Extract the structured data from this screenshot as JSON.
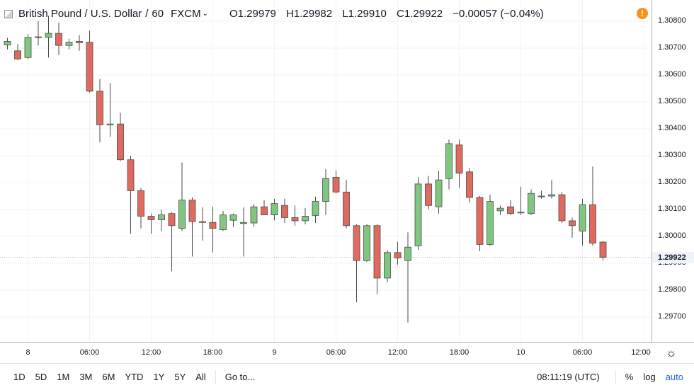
{
  "legend": {
    "symbol": "British Pound / U.S. Dollar",
    "interval": "60",
    "source": "FXCM",
    "open": "O1.29979",
    "high": "H1.29982",
    "low": "L1.29910",
    "close": "C1.29922",
    "change": "−0.00057 (−0.04%)"
  },
  "current_price": "1.29922",
  "toolbar": {
    "ranges": [
      "1D",
      "5D",
      "1M",
      "3M",
      "6M",
      "YTD",
      "1Y",
      "5Y",
      "All"
    ],
    "goto": "Go to...",
    "clock": "08:11:19 (UTC)",
    "percent": "%",
    "log": "log",
    "auto": "auto"
  },
  "colors": {
    "up": "#7fc67f",
    "down": "#e06a5e",
    "wick": "#4a4a4a",
    "grid": "#f0f3fa",
    "accent": "#2962ff"
  },
  "chart_data": {
    "type": "candlestick",
    "ylim": [
      1.29655,
      1.30845
    ],
    "y_ticks": [
      "1.30800",
      "1.30700",
      "1.30600",
      "1.30500",
      "1.30400",
      "1.30300",
      "1.30200",
      "1.30100",
      "1.30000",
      "1.29900",
      "1.29800",
      "1.29700"
    ],
    "x_ticks": [
      {
        "label": "8",
        "index": 2
      },
      {
        "label": "06:00",
        "index": 8
      },
      {
        "label": "12:00",
        "index": 14
      },
      {
        "label": "18:00",
        "index": 20
      },
      {
        "label": "9",
        "index": 26
      },
      {
        "label": "06:00",
        "index": 32
      },
      {
        "label": "12:00",
        "index": 38
      },
      {
        "label": "18:00",
        "index": 44
      },
      {
        "label": "10",
        "index": 50
      },
      {
        "label": "06:00",
        "index": 56
      },
      {
        "label": "12:00",
        "index": 62
      }
    ],
    "candles": [
      {
        "o": 1.30712,
        "h": 1.30738,
        "l": 1.30695,
        "c": 1.30725
      },
      {
        "o": 1.3069,
        "h": 1.30715,
        "l": 1.30655,
        "c": 1.3066
      },
      {
        "o": 1.30665,
        "h": 1.30752,
        "l": 1.3066,
        "c": 1.3074
      },
      {
        "o": 1.3074,
        "h": 1.308,
        "l": 1.3071,
        "c": 1.30742
      },
      {
        "o": 1.3074,
        "h": 1.3082,
        "l": 1.30665,
        "c": 1.30755
      },
      {
        "o": 1.30755,
        "h": 1.30795,
        "l": 1.30675,
        "c": 1.3071
      },
      {
        "o": 1.3071,
        "h": 1.30735,
        "l": 1.30695,
        "c": 1.30722
      },
      {
        "o": 1.30725,
        "h": 1.30748,
        "l": 1.3069,
        "c": 1.3072
      },
      {
        "o": 1.30722,
        "h": 1.30765,
        "l": 1.30535,
        "c": 1.3054
      },
      {
        "o": 1.3054,
        "h": 1.30585,
        "l": 1.3035,
        "c": 1.30415
      },
      {
        "o": 1.30415,
        "h": 1.3057,
        "l": 1.3037,
        "c": 1.30418
      },
      {
        "o": 1.30418,
        "h": 1.3046,
        "l": 1.3028,
        "c": 1.30285
      },
      {
        "o": 1.30285,
        "h": 1.303,
        "l": 1.3001,
        "c": 1.3017
      },
      {
        "o": 1.3017,
        "h": 1.3018,
        "l": 1.3003,
        "c": 1.30075
      },
      {
        "o": 1.30075,
        "h": 1.30085,
        "l": 1.3001,
        "c": 1.30062
      },
      {
        "o": 1.30062,
        "h": 1.301,
        "l": 1.3002,
        "c": 1.3008
      },
      {
        "o": 1.30085,
        "h": 1.3009,
        "l": 1.2987,
        "c": 1.3004
      },
      {
        "o": 1.3003,
        "h": 1.30275,
        "l": 1.3002,
        "c": 1.30135
      },
      {
        "o": 1.30135,
        "h": 1.30145,
        "l": 1.29925,
        "c": 1.30055
      },
      {
        "o": 1.30055,
        "h": 1.30108,
        "l": 1.29985,
        "c": 1.30052
      },
      {
        "o": 1.30052,
        "h": 1.3011,
        "l": 1.2994,
        "c": 1.3003
      },
      {
        "o": 1.30025,
        "h": 1.30095,
        "l": 1.3002,
        "c": 1.3008
      },
      {
        "o": 1.3006,
        "h": 1.30085,
        "l": 1.30035,
        "c": 1.3008
      },
      {
        "o": 1.30048,
        "h": 1.30108,
        "l": 1.29925,
        "c": 1.30052
      },
      {
        "o": 1.3005,
        "h": 1.3012,
        "l": 1.30035,
        "c": 1.3011
      },
      {
        "o": 1.3011,
        "h": 1.30135,
        "l": 1.3008,
        "c": 1.3008
      },
      {
        "o": 1.3008,
        "h": 1.3014,
        "l": 1.3006,
        "c": 1.30122
      },
      {
        "o": 1.30115,
        "h": 1.3014,
        "l": 1.3005,
        "c": 1.3007
      },
      {
        "o": 1.3007,
        "h": 1.30115,
        "l": 1.3004,
        "c": 1.30058
      },
      {
        "o": 1.30058,
        "h": 1.30105,
        "l": 1.30045,
        "c": 1.30075
      },
      {
        "o": 1.30078,
        "h": 1.30148,
        "l": 1.3005,
        "c": 1.3013
      },
      {
        "o": 1.3013,
        "h": 1.3025,
        "l": 1.3008,
        "c": 1.30215
      },
      {
        "o": 1.3022,
        "h": 1.30245,
        "l": 1.3016,
        "c": 1.30165
      },
      {
        "o": 1.30165,
        "h": 1.3021,
        "l": 1.3003,
        "c": 1.3004
      },
      {
        "o": 1.3004,
        "h": 1.30045,
        "l": 1.29755,
        "c": 1.2991
      },
      {
        "o": 1.2991,
        "h": 1.30045,
        "l": 1.29905,
        "c": 1.3004
      },
      {
        "o": 1.3004,
        "h": 1.30045,
        "l": 1.29785,
        "c": 1.29845
      },
      {
        "o": 1.29845,
        "h": 1.2995,
        "l": 1.2983,
        "c": 1.2994
      },
      {
        "o": 1.2994,
        "h": 1.2998,
        "l": 1.29895,
        "c": 1.2992
      },
      {
        "o": 1.2991,
        "h": 1.30015,
        "l": 1.2968,
        "c": 1.2996
      },
      {
        "o": 1.29965,
        "h": 1.3022,
        "l": 1.2995,
        "c": 1.30195
      },
      {
        "o": 1.30195,
        "h": 1.30225,
        "l": 1.301,
        "c": 1.30115
      },
      {
        "o": 1.3011,
        "h": 1.30245,
        "l": 1.30085,
        "c": 1.3021
      },
      {
        "o": 1.30215,
        "h": 1.3036,
        "l": 1.30175,
        "c": 1.30345
      },
      {
        "o": 1.3034,
        "h": 1.3036,
        "l": 1.3018,
        "c": 1.30235
      },
      {
        "o": 1.3024,
        "h": 1.30255,
        "l": 1.30125,
        "c": 1.30145
      },
      {
        "o": 1.30145,
        "h": 1.3015,
        "l": 1.29945,
        "c": 1.2997
      },
      {
        "o": 1.2997,
        "h": 1.30155,
        "l": 1.29965,
        "c": 1.3013
      },
      {
        "o": 1.30095,
        "h": 1.30115,
        "l": 1.3008,
        "c": 1.30105
      },
      {
        "o": 1.3011,
        "h": 1.30135,
        "l": 1.3008,
        "c": 1.30085
      },
      {
        "o": 1.3009,
        "h": 1.30185,
        "l": 1.3008,
        "c": 1.3009
      },
      {
        "o": 1.30085,
        "h": 1.30175,
        "l": 1.3008,
        "c": 1.3016
      },
      {
        "o": 1.3015,
        "h": 1.3017,
        "l": 1.3014,
        "c": 1.3015
      },
      {
        "o": 1.3015,
        "h": 1.3021,
        "l": 1.3014,
        "c": 1.30155
      },
      {
        "o": 1.30155,
        "h": 1.30165,
        "l": 1.3005,
        "c": 1.30058
      },
      {
        "o": 1.30058,
        "h": 1.3007,
        "l": 1.29995,
        "c": 1.3004
      },
      {
        "o": 1.3002,
        "h": 1.3014,
        "l": 1.29965,
        "c": 1.30118
      },
      {
        "o": 1.30118,
        "h": 1.3026,
        "l": 1.29965,
        "c": 1.29975
      },
      {
        "o": 1.29979,
        "h": 1.29982,
        "l": 1.2991,
        "c": 1.29922
      }
    ]
  }
}
